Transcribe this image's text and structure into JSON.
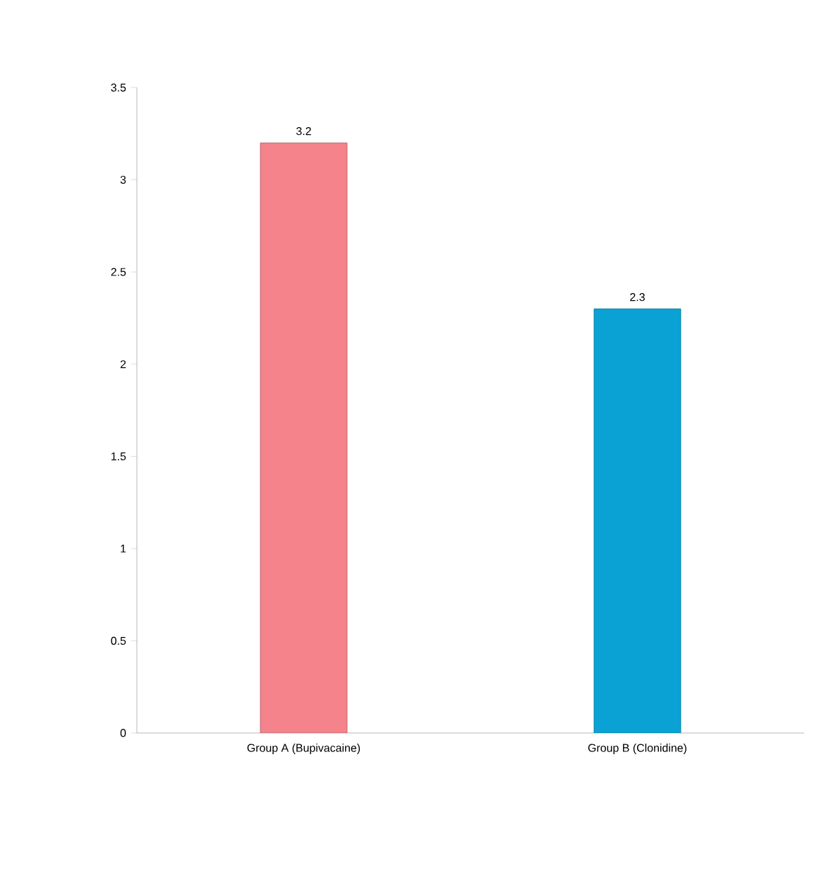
{
  "chart_data": {
    "type": "bar",
    "categories": [
      "Group A (Bupivacaine)",
      "Group B (Clonidine)"
    ],
    "values": [
      3.2,
      2.3
    ],
    "colors": [
      "#f4838b",
      "#0aa2d4"
    ],
    "data_labels": true,
    "ylim": [
      0,
      3.5
    ],
    "yticks": [
      0,
      0.5,
      1,
      1.5,
      2,
      2.5,
      3,
      3.5
    ],
    "grid": false
  }
}
